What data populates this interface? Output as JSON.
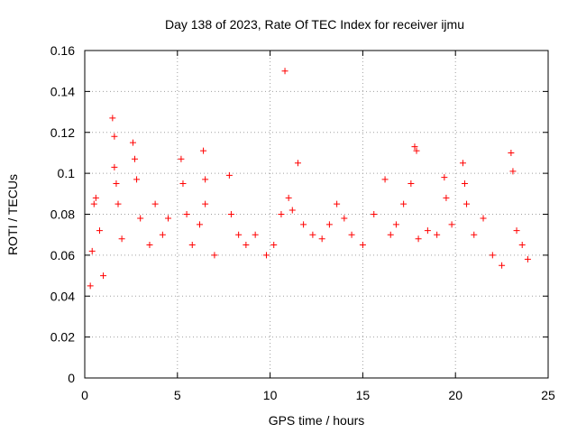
{
  "chart_data": {
    "type": "scatter",
    "title": "Day 138 of 2023, Rate Of TEC Index for receiver ijmu",
    "xlabel": "GPS time / hours",
    "ylabel": "ROTI / TECUs",
    "xlim": [
      0,
      25
    ],
    "ylim": [
      0,
      0.16
    ],
    "xticks": [
      0,
      5,
      10,
      15,
      20,
      25
    ],
    "yticks": [
      0,
      0.02,
      0.04,
      0.06,
      0.08,
      0.1,
      0.12,
      0.14,
      0.16
    ],
    "xtick_labels": [
      "0",
      "5",
      "10",
      "15",
      "20",
      "25"
    ],
    "ytick_labels": [
      "0",
      "0.02",
      "0.04",
      "0.06",
      "0.08",
      "0.1",
      "0.12",
      "0.14",
      "0.16"
    ],
    "grid": true,
    "marker": "+",
    "series_color": "#ff0000",
    "series": [
      {
        "name": "ROTI",
        "points": [
          [
            0.3,
            0.045
          ],
          [
            0.4,
            0.062
          ],
          [
            0.5,
            0.085
          ],
          [
            0.6,
            0.088
          ],
          [
            0.8,
            0.072
          ],
          [
            1.0,
            0.05
          ],
          [
            1.5,
            0.127
          ],
          [
            1.6,
            0.118
          ],
          [
            1.6,
            0.103
          ],
          [
            1.7,
            0.095
          ],
          [
            1.8,
            0.085
          ],
          [
            2.0,
            0.068
          ],
          [
            2.6,
            0.115
          ],
          [
            2.7,
            0.107
          ],
          [
            2.8,
            0.097
          ],
          [
            3.0,
            0.078
          ],
          [
            3.5,
            0.065
          ],
          [
            3.8,
            0.085
          ],
          [
            4.2,
            0.07
          ],
          [
            4.5,
            0.078
          ],
          [
            5.2,
            0.107
          ],
          [
            5.3,
            0.095
          ],
          [
            5.5,
            0.08
          ],
          [
            5.8,
            0.065
          ],
          [
            6.2,
            0.075
          ],
          [
            6.4,
            0.111
          ],
          [
            6.5,
            0.097
          ],
          [
            6.5,
            0.085
          ],
          [
            7.0,
            0.06
          ],
          [
            7.8,
            0.099
          ],
          [
            7.9,
            0.08
          ],
          [
            8.3,
            0.07
          ],
          [
            8.7,
            0.065
          ],
          [
            9.2,
            0.07
          ],
          [
            9.8,
            0.06
          ],
          [
            10.2,
            0.065
          ],
          [
            10.6,
            0.08
          ],
          [
            10.8,
            0.15
          ],
          [
            11.0,
            0.088
          ],
          [
            11.2,
            0.082
          ],
          [
            11.5,
            0.105
          ],
          [
            11.8,
            0.075
          ],
          [
            12.3,
            0.07
          ],
          [
            12.8,
            0.068
          ],
          [
            13.2,
            0.075
          ],
          [
            13.6,
            0.085
          ],
          [
            14.0,
            0.078
          ],
          [
            14.4,
            0.07
          ],
          [
            15.0,
            0.065
          ],
          [
            15.6,
            0.08
          ],
          [
            16.2,
            0.097
          ],
          [
            16.5,
            0.07
          ],
          [
            16.8,
            0.075
          ],
          [
            17.2,
            0.085
          ],
          [
            17.6,
            0.095
          ],
          [
            17.8,
            0.113
          ],
          [
            17.9,
            0.111
          ],
          [
            18.0,
            0.068
          ],
          [
            18.5,
            0.072
          ],
          [
            19.0,
            0.07
          ],
          [
            19.4,
            0.098
          ],
          [
            19.5,
            0.088
          ],
          [
            19.8,
            0.075
          ],
          [
            20.4,
            0.105
          ],
          [
            20.5,
            0.095
          ],
          [
            20.6,
            0.085
          ],
          [
            21.0,
            0.07
          ],
          [
            21.5,
            0.078
          ],
          [
            22.0,
            0.06
          ],
          [
            22.5,
            0.055
          ],
          [
            23.0,
            0.11
          ],
          [
            23.1,
            0.101
          ],
          [
            23.3,
            0.072
          ],
          [
            23.6,
            0.065
          ],
          [
            23.9,
            0.058
          ]
        ]
      }
    ]
  }
}
